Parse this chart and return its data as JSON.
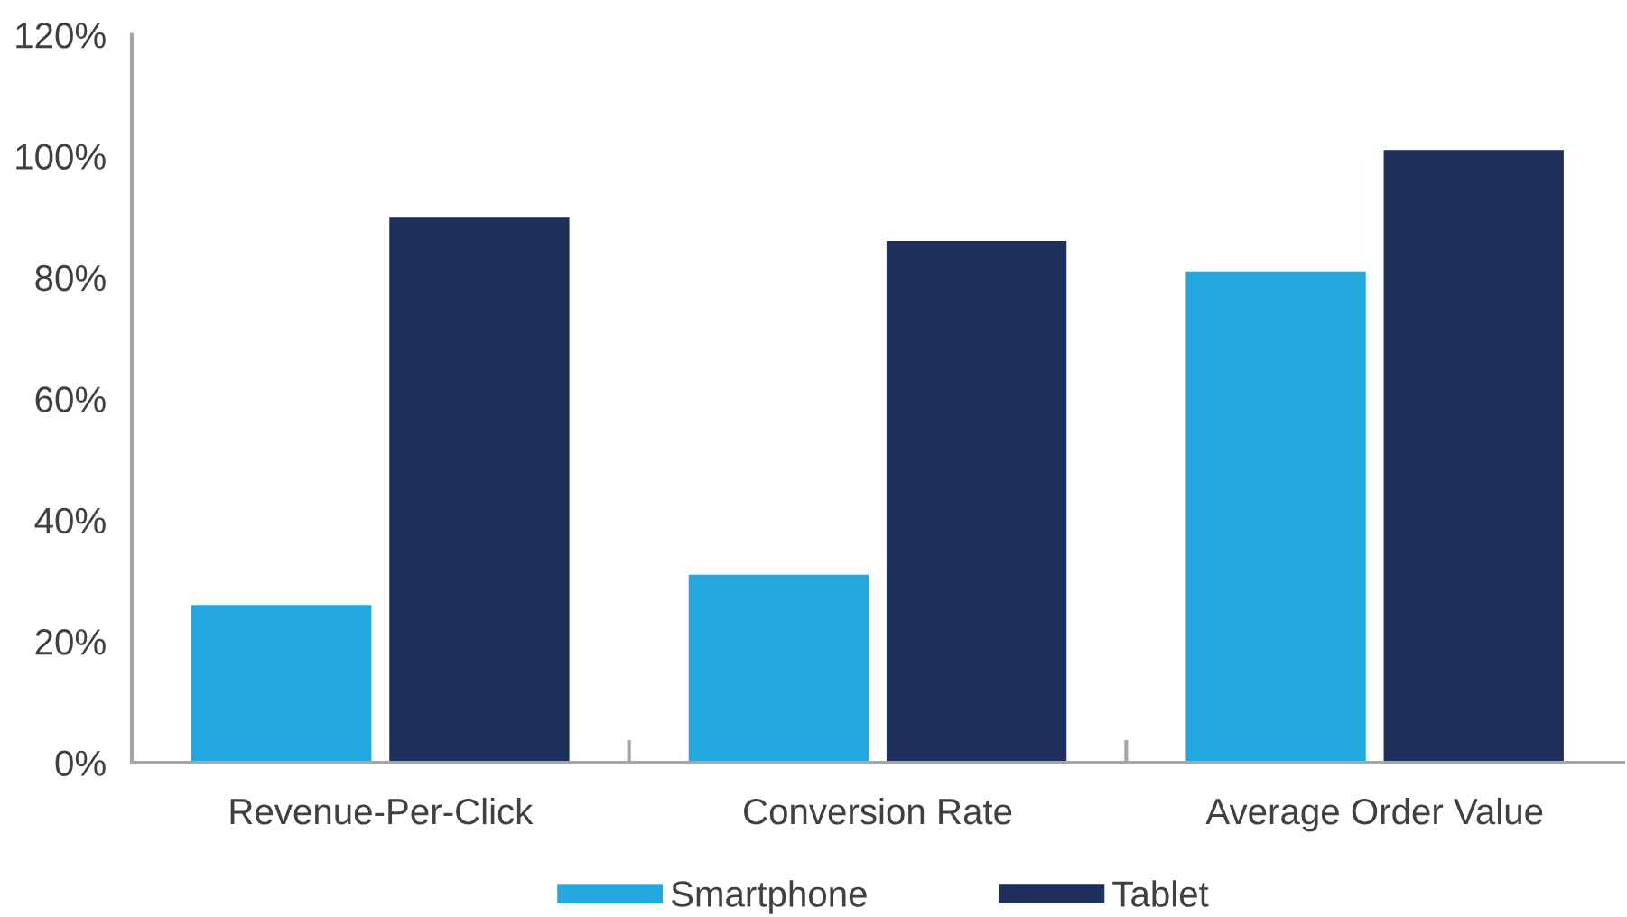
{
  "chart_data": {
    "type": "bar",
    "categories": [
      "Revenue-Per-Click",
      "Conversion Rate",
      "Average Order Value"
    ],
    "series": [
      {
        "name": "Smartphone",
        "color": "#22a7df",
        "values": [
          26,
          31,
          81
        ]
      },
      {
        "name": "Tablet",
        "color": "#1d2f5a",
        "values": [
          90,
          86,
          101
        ]
      }
    ],
    "ylim": [
      0,
      120
    ],
    "yticks": [
      {
        "value": 0,
        "label": "0%"
      },
      {
        "value": 20,
        "label": "20%"
      },
      {
        "value": 40,
        "label": "40%"
      },
      {
        "value": 60,
        "label": "60%"
      },
      {
        "value": 80,
        "label": "80%"
      },
      {
        "value": 100,
        "label": "100%"
      },
      {
        "value": 120,
        "label": "120%"
      }
    ],
    "grid": false,
    "legend": "bottom"
  }
}
